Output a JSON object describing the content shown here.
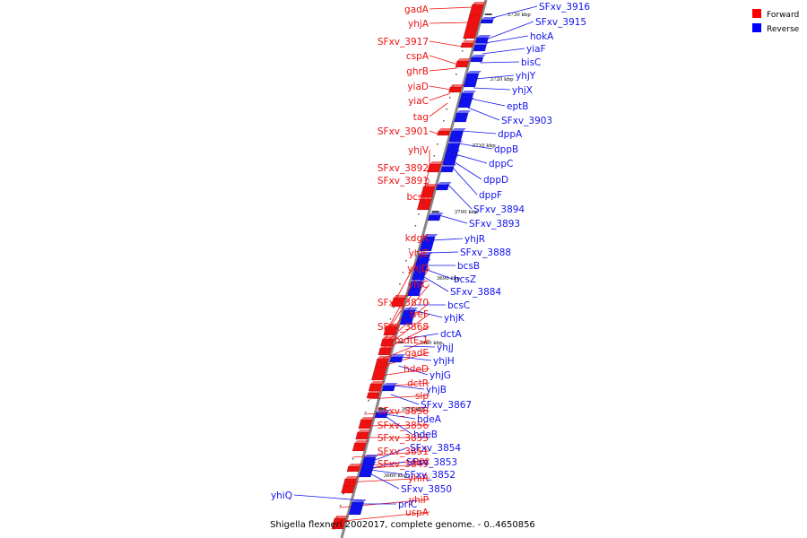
{
  "caption": "Shigella flexneri 2002017, complete genome. - 0..4650856",
  "legend": [
    {
      "label": "Forward",
      "color": "#ff0000"
    },
    {
      "label": "Reverse",
      "color": "#0000ff"
    }
  ],
  "colors": {
    "forward": "#ee1111",
    "reverse": "#1111ee",
    "axis": "#888888"
  },
  "ticks": [
    "3730 kbp",
    "3720 kbp",
    "3710 kbp",
    "3700 kbp",
    "3690 kbp",
    "3680 kbp",
    "3670 kbp",
    "3660 kbp"
  ],
  "forward_genes": [
    "gadA",
    "yhjA",
    "SFxv_3917",
    "cspA",
    "ghrB",
    "yiaD",
    "yiaC",
    "tag",
    "SFxv_3901",
    "yhjV",
    "SFxv_3892",
    "SFxv_3891",
    "bcsE",
    "kdgK",
    "yhjE",
    "yhjD",
    "yhjC",
    "SFxv_3870",
    "treF",
    "SFxv_3868",
    "mdtE-1",
    "gadE",
    "hdeD",
    "dctR",
    "slp",
    "SFxv_3858",
    "SFxv_3856",
    "SFxv_3855",
    "SFxv_3851",
    "gor",
    "SFxv_3849",
    "yhiR",
    "yhiP",
    "uspA"
  ],
  "reverse_genes": [
    "SFxv_3916",
    "SFxv_3915",
    "hokA",
    "yiaF",
    "bisC",
    "yhjY",
    "yhjX",
    "eptB",
    "SFxv_3903",
    "dppA",
    "dppB",
    "dppC",
    "dppD",
    "dppF",
    "SFxv_3894",
    "SFxv_3893",
    "yhjR",
    "SFxv_3888",
    "bcsB",
    "bcsZ",
    "SFxv_3884",
    "bcsC",
    "yhjK",
    "dctA",
    "yhjJ",
    "yhjH",
    "yhjG",
    "yhjB",
    "SFxv_3867",
    "hdeA",
    "hdeB",
    "SFxv_3854",
    "SFxv_3853",
    "SFxv_3852",
    "SFxv_3850",
    "prlC",
    "yhiQ"
  ]
}
